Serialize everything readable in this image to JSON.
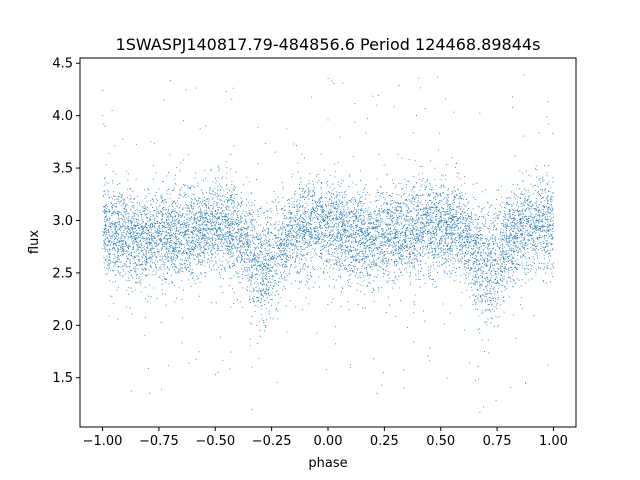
{
  "chart_data": {
    "type": "scatter",
    "title": "1SWASPJ140817.79-484856.6 Period 124468.89844s",
    "xlabel": "phase",
    "ylabel": "flux",
    "xlim": [
      -1.1,
      1.1
    ],
    "ylim": [
      1.03,
      4.55
    ],
    "grid": false,
    "legend": "none",
    "marker_color": "#1f77b4",
    "xticks": [
      -1.0,
      -0.75,
      -0.5,
      -0.25,
      0.0,
      0.25,
      0.5,
      0.75,
      1.0
    ],
    "xtick_labels": [
      "−1.00",
      "−0.75",
      "−0.50",
      "−0.25",
      "0.00",
      "0.25",
      "0.50",
      "0.75",
      "1.00"
    ],
    "yticks": [
      1.5,
      2.0,
      2.5,
      3.0,
      3.5,
      4.0,
      4.5
    ],
    "ytick_labels": [
      "1.5",
      "2.0",
      "2.5",
      "3.0",
      "3.5",
      "4.0",
      "4.5"
    ],
    "series": [
      {
        "profile_phase": [
          -1.0,
          -0.9,
          -0.8,
          -0.7,
          -0.6,
          -0.5,
          -0.45,
          -0.4,
          -0.35,
          -0.32,
          -0.3,
          -0.28,
          -0.25,
          -0.2,
          -0.15,
          -0.1,
          -0.05,
          0.0,
          0.1,
          0.2,
          0.3,
          0.4,
          0.5,
          0.55,
          0.6,
          0.65,
          0.68,
          0.7,
          0.72,
          0.75,
          0.8,
          0.85,
          0.9,
          0.95,
          1.0
        ],
        "profile_flux": [
          2.9,
          2.85,
          2.82,
          2.86,
          2.9,
          2.95,
          2.92,
          2.85,
          2.75,
          2.62,
          2.55,
          2.58,
          2.65,
          2.78,
          2.88,
          2.93,
          2.96,
          2.95,
          2.88,
          2.82,
          2.87,
          2.92,
          2.95,
          2.92,
          2.85,
          2.72,
          2.6,
          2.55,
          2.58,
          2.65,
          2.78,
          2.9,
          2.96,
          2.98,
          2.95
        ],
        "scatter_sd": 0.22,
        "n_points": 9000
      }
    ]
  }
}
